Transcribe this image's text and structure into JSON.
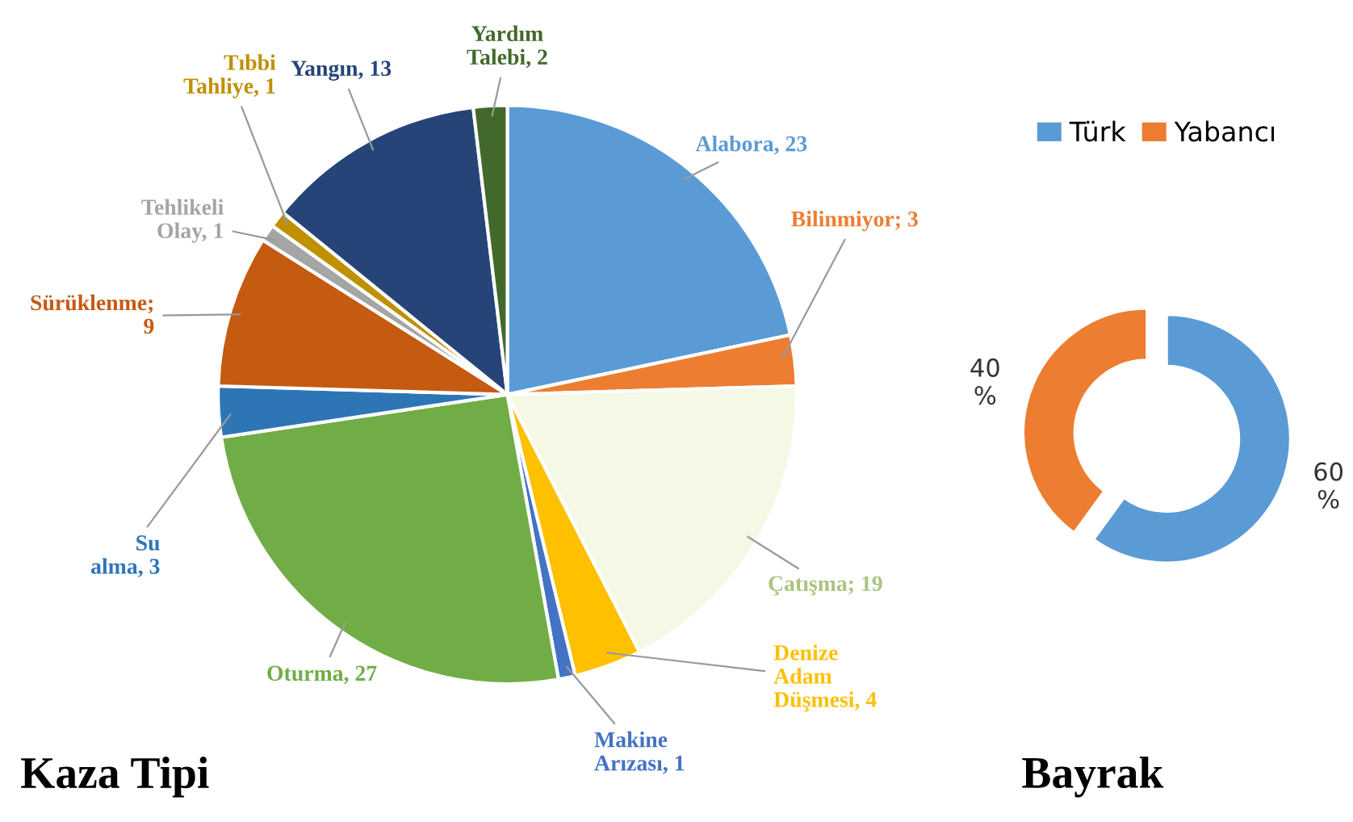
{
  "chart_data": [
    {
      "type": "pie",
      "title": "Kaza Tipi",
      "categories": [
        "Alabora, 23",
        "Bilinmiyor; 3",
        "Çatışma; 19",
        "Denize\nAdam\nDüşmesi, 4",
        "Makine\nArızası, 1",
        "Oturma, 27",
        "Su\nalma, 3",
        "Sürüklenme;\n9",
        "Tehlikeli\nOlay, 1",
        "Tıbbi\nTahliye, 1",
        "Yangın, 13",
        "Yardım\nTalebi, 2"
      ],
      "values": [
        23,
        3,
        19,
        4,
        1,
        27,
        3,
        9,
        1,
        1,
        13,
        2
      ],
      "colors": [
        "#5b9bd5",
        "#ed7d31",
        "#f4f8e4",
        "#ffc000",
        "#4472c4",
        "#70ad47",
        "#2e75b6",
        "#c55a11",
        "#a5a5a5",
        "#bf9000",
        "#264478",
        "#43682b"
      ],
      "legend": false
    },
    {
      "type": "donut",
      "title": "Bayrak",
      "categories": [
        "Türk",
        "Yabancı"
      ],
      "values": [
        60,
        40
      ],
      "colors": [
        "#5b9bd5",
        "#ed7d31"
      ],
      "value_labels": [
        "60\n%",
        "40\n%"
      ],
      "legend": "top"
    }
  ]
}
